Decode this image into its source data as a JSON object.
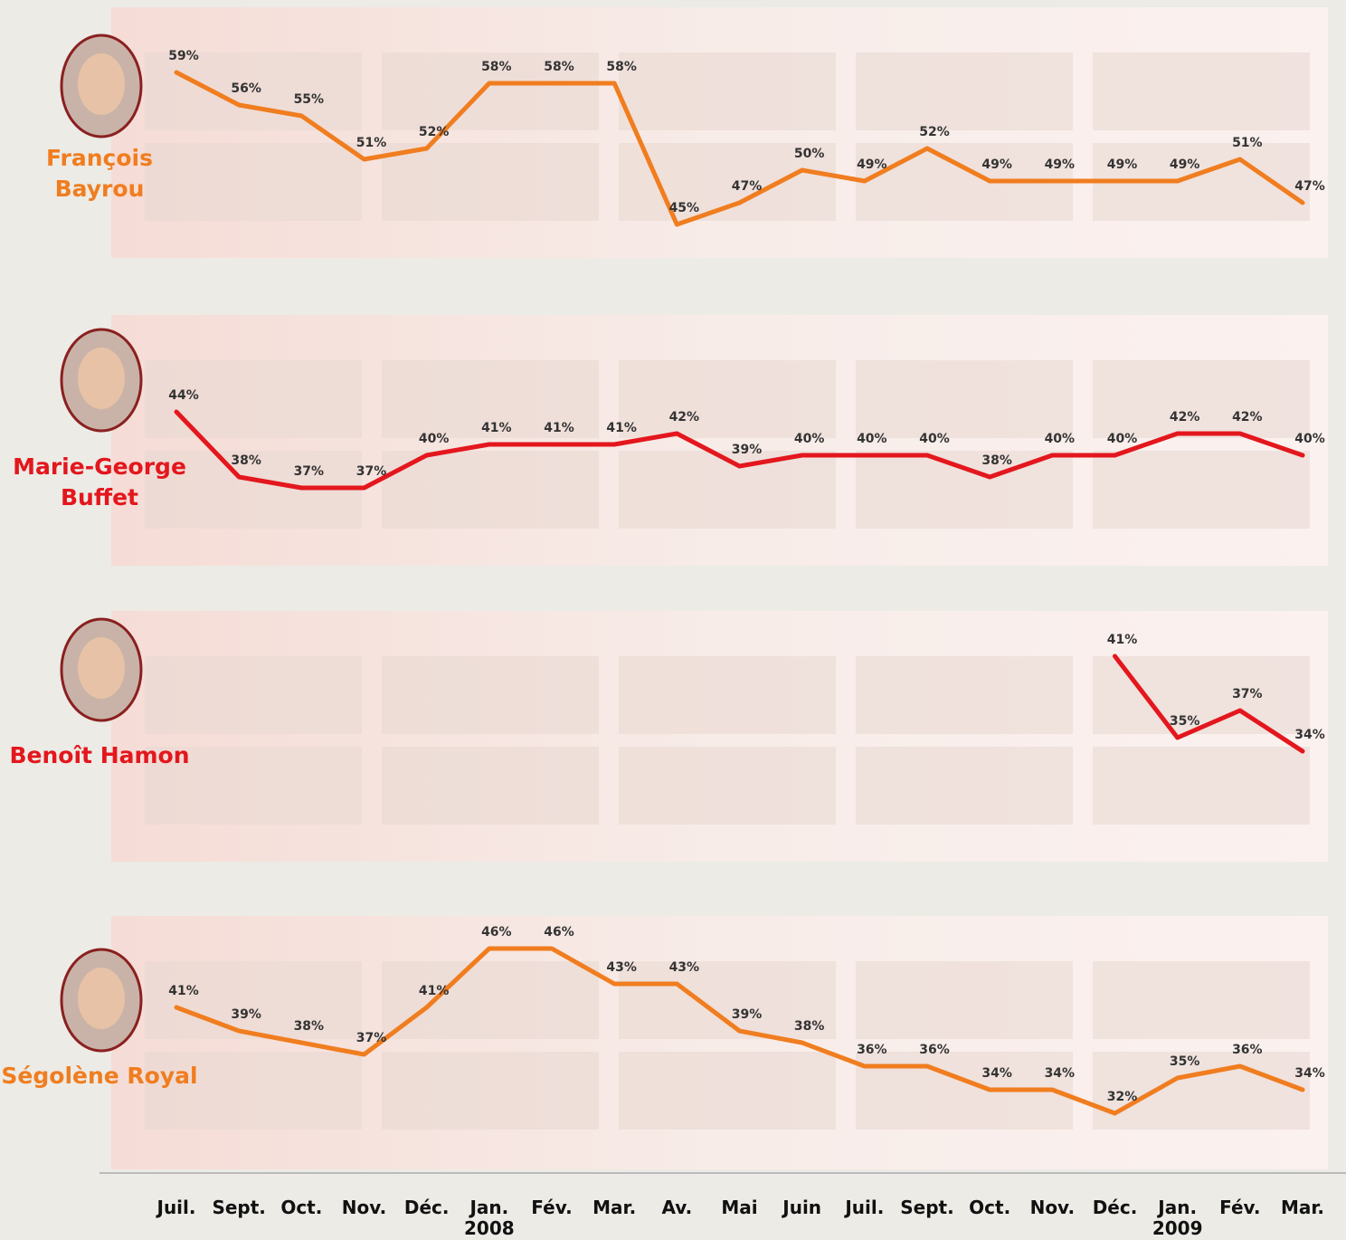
{
  "x_axis": {
    "categories": [
      "Juil.",
      "Sept.",
      "Oct.",
      "Nov.",
      "Déc.",
      "Jan.",
      "Fév.",
      "Mar.",
      "Av.",
      "Mai",
      "Juin",
      "Juil.",
      "Sept.",
      "Oct.",
      "Nov.",
      "Déc.",
      "Jan.",
      "Fév.",
      "Mar."
    ],
    "years": [
      null,
      null,
      null,
      null,
      null,
      "2008",
      null,
      null,
      null,
      null,
      null,
      null,
      null,
      null,
      null,
      null,
      "2009",
      null,
      null
    ]
  },
  "chart_data": [
    {
      "type": "line",
      "ylim": [
        40,
        62
      ],
      "series": [
        {
          "name": "François Bayrou",
          "color": "#f07d1f",
          "values": [
            59,
            56,
            55,
            51,
            52,
            58,
            58,
            58,
            45,
            47,
            50,
            49,
            52,
            49,
            49,
            49,
            49,
            51,
            47
          ],
          "value_labels": [
            "59%",
            "56%",
            "55%",
            "51%",
            "52%",
            "58%",
            "58%",
            "58%",
            "45%",
            "47%",
            "50%",
            "49%",
            "52%",
            "49%",
            "49%",
            "49%",
            "49%",
            "51%",
            "47%"
          ]
        }
      ]
    },
    {
      "type": "line",
      "ylim": [
        30,
        48
      ],
      "series": [
        {
          "name": "Marie-George Buffet",
          "color": "#e3171d",
          "values": [
            44,
            38,
            37,
            37,
            40,
            41,
            41,
            41,
            42,
            39,
            40,
            40,
            40,
            38,
            40,
            40,
            42,
            42,
            40
          ],
          "value_labels": [
            "44%",
            "38%",
            "37%",
            "37%",
            "40%",
            "41%",
            "41%",
            "41%",
            "42%",
            "39%",
            "40%",
            "40%",
            "40%",
            "38%",
            "40%",
            "40%",
            "42%",
            "42%",
            "40%"
          ]
        }
      ]
    },
    {
      "type": "line",
      "ylim": [
        30,
        44
      ],
      "series": [
        {
          "name": "Benoît Hamon",
          "color": "#e3171d",
          "values": [
            null,
            null,
            null,
            null,
            null,
            null,
            null,
            null,
            null,
            null,
            null,
            null,
            null,
            null,
            null,
            41,
            35,
            37,
            34
          ],
          "value_labels": [
            null,
            null,
            null,
            null,
            null,
            null,
            null,
            null,
            null,
            null,
            null,
            null,
            null,
            null,
            null,
            "41%",
            "35%",
            "37%",
            "34%"
          ]
        }
      ]
    },
    {
      "type": "line",
      "ylim": [
        28,
        50
      ],
      "series": [
        {
          "name": "Ségolène Royal",
          "color": "#f07d1f",
          "values": [
            41,
            39,
            38,
            37,
            41,
            46,
            46,
            43,
            43,
            39,
            38,
            36,
            36,
            34,
            34,
            32,
            35,
            36,
            34
          ],
          "value_labels": [
            "41%",
            "39%",
            "38%",
            "37%",
            "41%",
            "46%",
            "46%",
            "43%",
            "43%",
            "39%",
            "38%",
            "36%",
            "36%",
            "34%",
            "34%",
            "32%",
            "35%",
            "36%",
            "34%"
          ]
        }
      ]
    }
  ]
}
